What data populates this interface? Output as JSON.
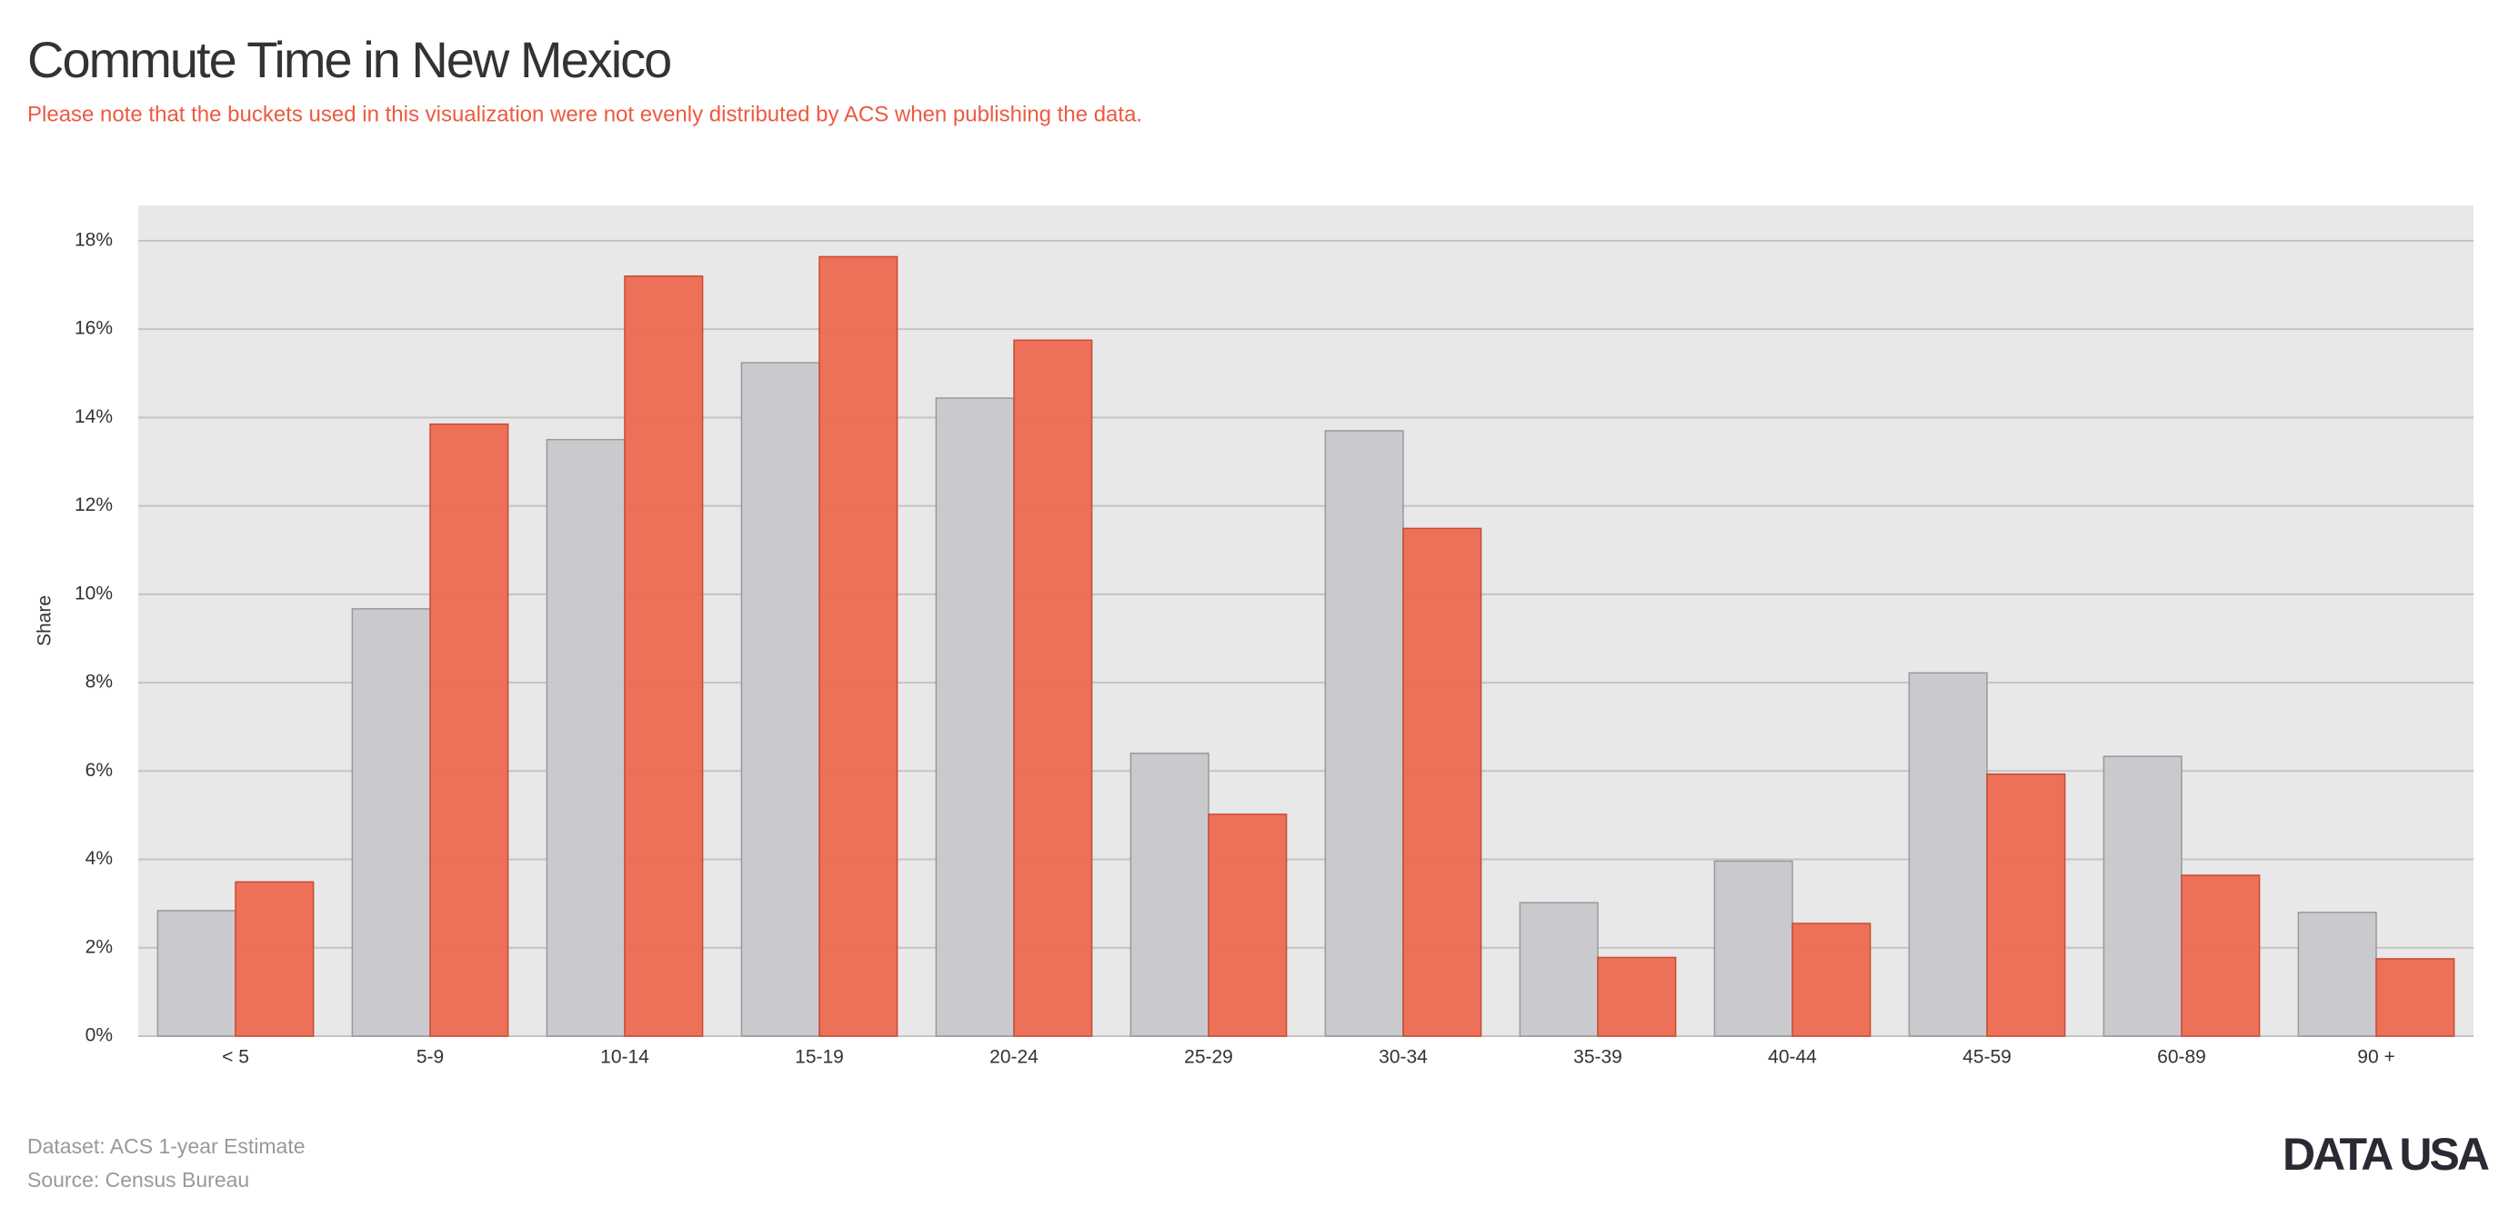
{
  "chart_data": {
    "type": "bar",
    "title": "Commute Time in New Mexico",
    "subtitle": "Please note that the buckets used in this visualization were not evenly distributed by ACS when publishing the data.",
    "y_label": "Share",
    "categories": [
      "< 5",
      "5-9",
      "10-14",
      "15-19",
      "20-24",
      "25-29",
      "30-34",
      "35-39",
      "40-44",
      "45-59",
      "60-89",
      "90 +"
    ],
    "series": [
      {
        "color": "#c8c8cc",
        "values": [
          2.84,
          9.67,
          13.5,
          15.24,
          14.44,
          6.4,
          13.7,
          3.02,
          3.96,
          8.22,
          6.33,
          2.8
        ]
      },
      {
        "color": "#ec6a50",
        "values": [
          3.49,
          13.85,
          17.2,
          17.64,
          15.75,
          5.02,
          11.49,
          1.78,
          2.55,
          5.93,
          3.64,
          1.75
        ]
      }
    ],
    "ylim": [
      0,
      18.8
    ],
    "yticks": [
      {
        "value": 0,
        "label": "0%"
      },
      {
        "value": 2,
        "label": "2%"
      },
      {
        "value": 4,
        "label": "4%"
      },
      {
        "value": 6,
        "label": "6%"
      },
      {
        "value": 8,
        "label": "8%"
      },
      {
        "value": 10,
        "label": "10%"
      },
      {
        "value": 12,
        "label": "12%"
      },
      {
        "value": 14,
        "label": "14%"
      },
      {
        "value": 16,
        "label": "16%"
      },
      {
        "value": 18,
        "label": "18%"
      }
    ],
    "grid": true
  },
  "footer": {
    "dataset": "Dataset: ACS 1-year Estimate",
    "source": "Source: Census Bureau",
    "logo": "DATA USA"
  }
}
